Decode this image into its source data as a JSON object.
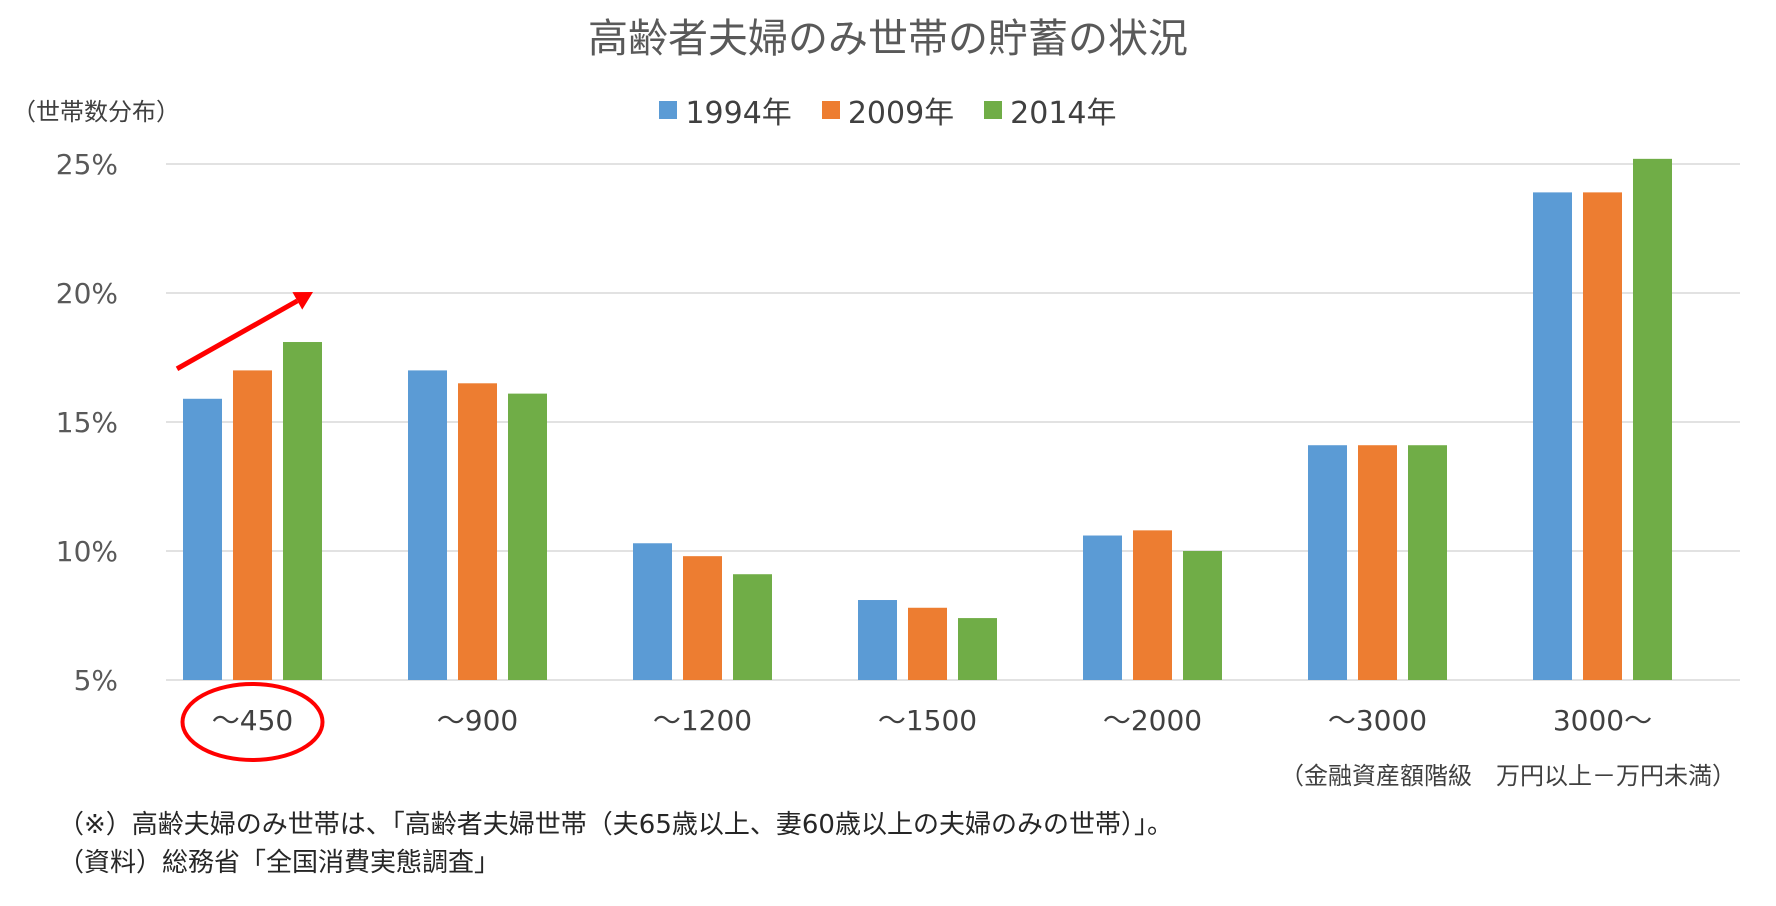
{
  "chart_data": {
    "type": "bar",
    "title": "高齢者夫婦のみ世帯の貯蓄の状況",
    "ylabel": "（世帯数分布）",
    "xlabel": "（金融資産額階級　万円以上－万円未満）",
    "categories": [
      "～450",
      "～900",
      "～1200",
      "～1500",
      "～2000",
      "～3000",
      "3000～"
    ],
    "series": [
      {
        "name": "1994年",
        "color": "#5B9BD5",
        "values": [
          15.9,
          17.0,
          10.3,
          8.1,
          10.6,
          14.1,
          23.9
        ]
      },
      {
        "name": "2009年",
        "color": "#ED7D31",
        "values": [
          17.0,
          16.5,
          9.8,
          7.8,
          10.8,
          14.1,
          23.9
        ]
      },
      {
        "name": "2014年",
        "color": "#70AD47",
        "values": [
          18.1,
          16.1,
          9.1,
          7.4,
          10.0,
          14.1,
          25.2
        ]
      }
    ],
    "ylim": [
      5,
      25
    ],
    "yticks": [
      "5%",
      "10%",
      "15%",
      "20%",
      "25%"
    ],
    "ytick_values": [
      5,
      10,
      15,
      20,
      25
    ],
    "grid": true,
    "legend_position": "top-center",
    "highlighted_category": "～450",
    "annotation_color": "#FF0000"
  },
  "notes": [
    "（※）高齢夫婦のみ世帯は、「高齢者夫婦世帯（夫65歳以上、妻60歳以上の夫婦のみの世帯）」。",
    "（資料）総務省「全国消費実態調査」"
  ]
}
